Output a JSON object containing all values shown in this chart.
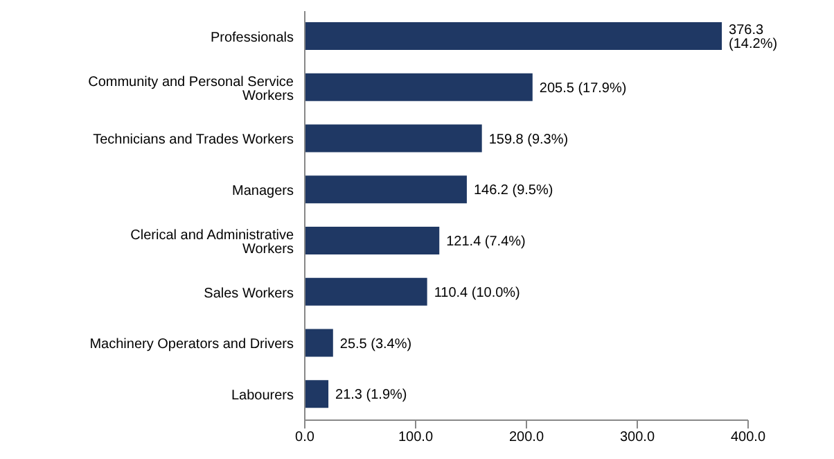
{
  "chart_data": {
    "type": "bar",
    "orientation": "horizontal",
    "categories": [
      "Professionals",
      "Community and Personal Service Workers",
      "Technicians and Trades Workers",
      "Managers",
      "Clerical and Administrative Workers",
      "Sales Workers",
      "Machinery Operators and Drivers",
      "Labourers"
    ],
    "values": [
      376.3,
      205.5,
      159.8,
      146.2,
      121.4,
      110.4,
      25.5,
      21.3
    ],
    "value_labels": [
      "376.3 (14.2%)",
      "205.5 (17.9%)",
      "159.8 (9.3%)",
      "146.2 (9.5%)",
      "121.4 (7.4%)",
      "110.4 (10.0%)",
      "25.5 (3.4%)",
      "21.3 (1.9%)"
    ],
    "color": "#1f3864",
    "xlim": [
      0,
      400
    ],
    "xticks": [
      {
        "value": 0,
        "label": "0.0"
      },
      {
        "value": 100,
        "label": "100.0"
      },
      {
        "value": 200,
        "label": "200.0"
      },
      {
        "value": 300,
        "label": "300.0"
      },
      {
        "value": 400,
        "label": "400.0"
      }
    ],
    "grid": false,
    "legend": false
  }
}
